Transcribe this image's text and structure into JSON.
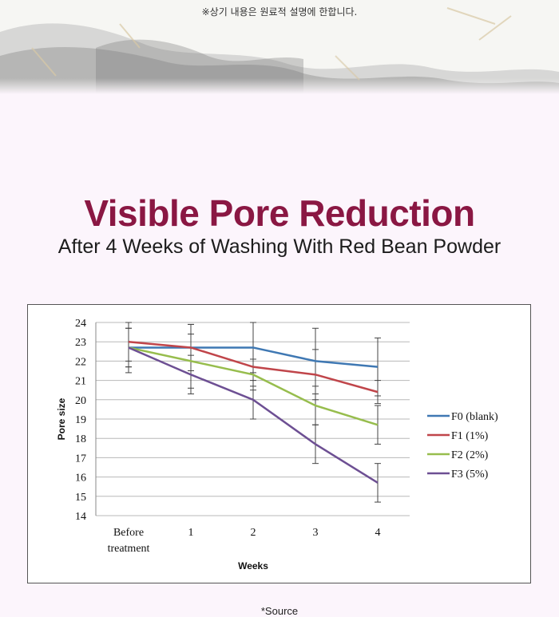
{
  "banner": {
    "notice": "※상기 내용은 원료적 설명에 한합니다."
  },
  "heading": {
    "title": "Visible Pore Reduction",
    "subtitle": "After 4 Weeks of Washing With Red Bean Powder"
  },
  "footer": {
    "source": "*Source"
  },
  "colors": {
    "title": "#8a1743",
    "background": "#fcf5fc"
  },
  "chart_data": {
    "type": "line",
    "xlabel": "Weeks",
    "ylabel": "Pore size",
    "ylim": [
      14,
      24
    ],
    "y_ticks": [
      14,
      15,
      16,
      17,
      18,
      19,
      20,
      21,
      22,
      23,
      24
    ],
    "categories": [
      "Before treatment",
      "1",
      "2",
      "3",
      "4"
    ],
    "grid": "horizontal",
    "legend_position": "right",
    "series": [
      {
        "name": "F0 (blank)",
        "color": "#3f78b3",
        "values": [
          22.7,
          22.7,
          22.7,
          22.0,
          21.7
        ],
        "error": [
          1.3,
          1.2,
          1.3,
          1.7,
          1.5
        ]
      },
      {
        "name": "F1 (1%)",
        "color": "#c0454a",
        "values": [
          23.0,
          22.7,
          21.7,
          21.3,
          20.4
        ],
        "error": [
          1.0,
          1.2,
          1.0,
          1.3,
          0.6
        ]
      },
      {
        "name": "F2 (2%)",
        "color": "#97bd4d",
        "values": [
          22.7,
          22.0,
          21.3,
          19.7,
          18.7
        ],
        "error": [
          1.0,
          1.4,
          0.8,
          1.0,
          1.0
        ]
      },
      {
        "name": "F3 (5%)",
        "color": "#6d4f93",
        "values": [
          22.7,
          21.3,
          20.0,
          17.7,
          15.7
        ],
        "error": [
          1.0,
          1.0,
          1.0,
          1.0,
          1.0
        ]
      }
    ]
  }
}
